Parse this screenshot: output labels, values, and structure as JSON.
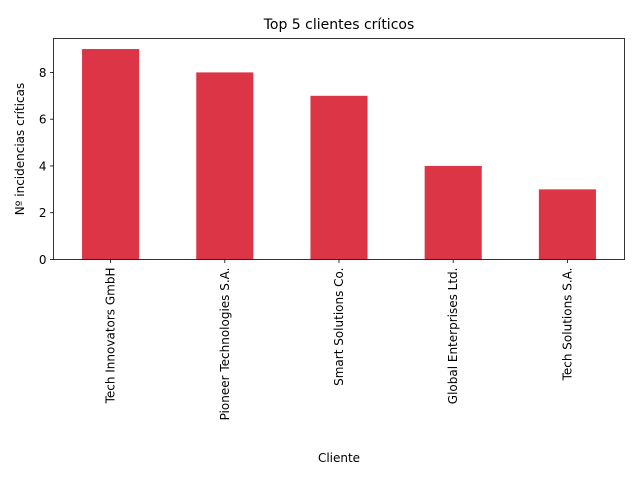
{
  "chart_data": {
    "type": "bar",
    "title": "Top 5 clientes críticos",
    "xlabel": "Cliente",
    "ylabel": "Nº incidencias críticas",
    "categories": [
      "Tech Innovators GmbH",
      "Pioneer Technologies S.A.",
      "Smart Solutions Co.",
      "Global Enterprises Ltd.",
      "Tech Solutions S.A."
    ],
    "values": [
      9,
      8,
      7,
      4,
      3
    ],
    "ylim": [
      0,
      9.45
    ],
    "yticks": [
      "0",
      "2",
      "4",
      "6",
      "8"
    ],
    "bar_color": "#dc3545",
    "grid": false,
    "legend": "none"
  }
}
